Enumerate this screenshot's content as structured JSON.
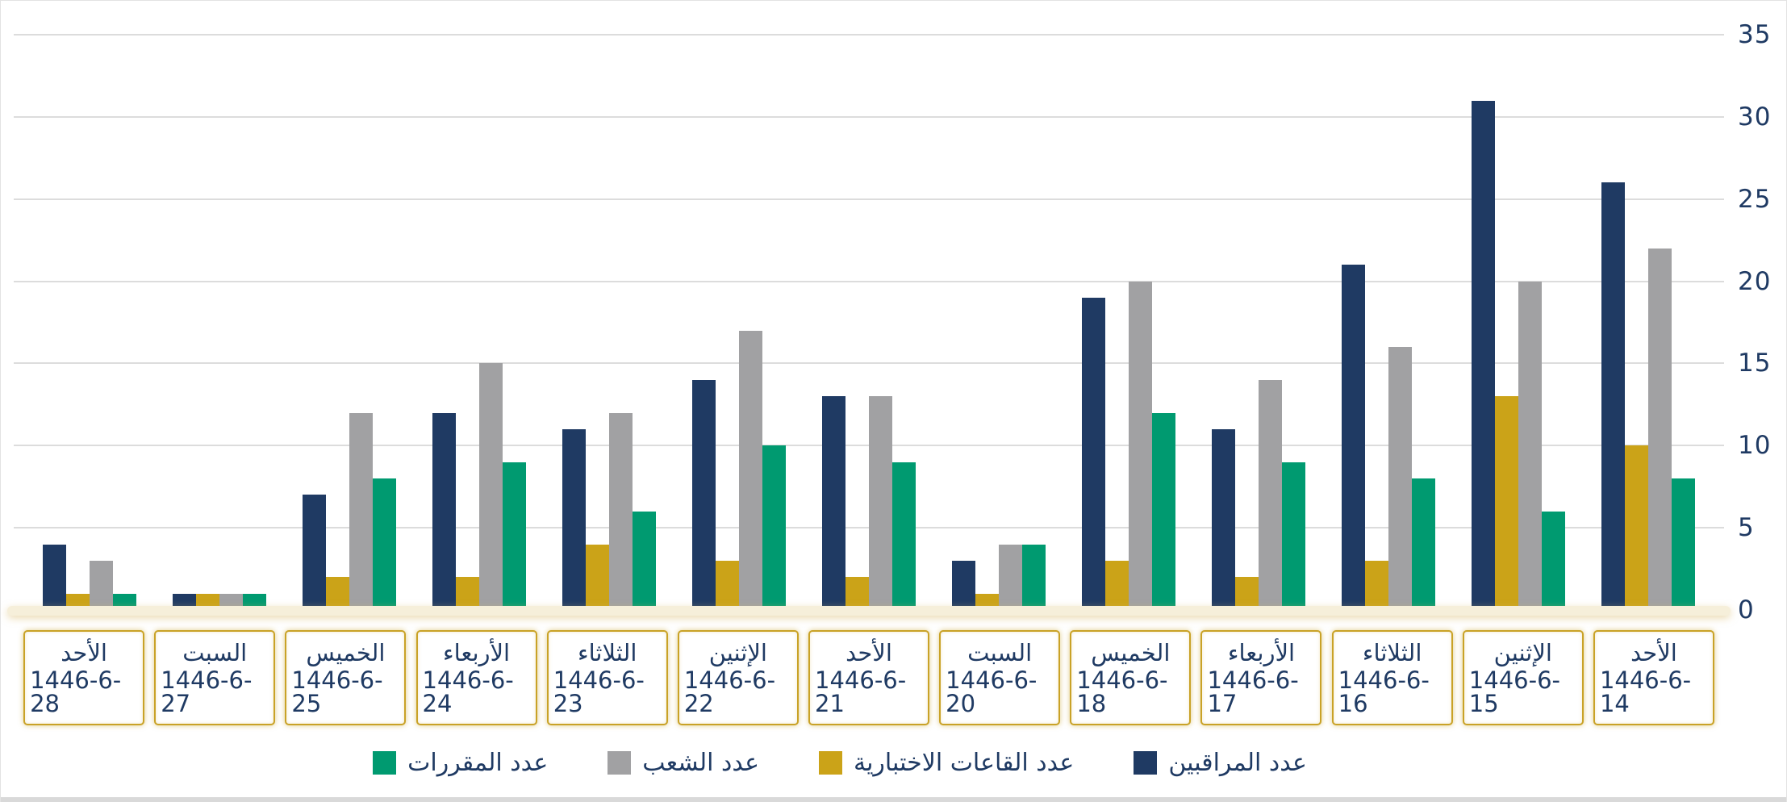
{
  "chart_data": {
    "type": "bar",
    "title": "",
    "xlabel": "",
    "ylabel": "",
    "ylim": [
      0,
      35
    ],
    "yticks": [
      0,
      5,
      10,
      15,
      20,
      25,
      30,
      35
    ],
    "grid": "horizontal",
    "legend_position": "bottom",
    "axis_side": "right",
    "categories": [
      {
        "day": "الأحد",
        "date": "1446-6-28"
      },
      {
        "day": "السبت",
        "date": "1446-6-27"
      },
      {
        "day": "الخميس",
        "date": "1446-6-25"
      },
      {
        "day": "الأربعاء",
        "date": "1446-6-24"
      },
      {
        "day": "الثلاثاء",
        "date": "1446-6-23"
      },
      {
        "day": "الإثنين",
        "date": "1446-6-22"
      },
      {
        "day": "الأحد",
        "date": "1446-6-21"
      },
      {
        "day": "السبت",
        "date": "1446-6-20"
      },
      {
        "day": "الخميس",
        "date": "1446-6-18"
      },
      {
        "day": "الأربعاء",
        "date": "1446-6-17"
      },
      {
        "day": "الثلاثاء",
        "date": "1446-6-16"
      },
      {
        "day": "الإثنين",
        "date": "1446-6-15"
      },
      {
        "day": "الأحد",
        "date": "1446-6-14"
      }
    ],
    "series": [
      {
        "id": "proctors",
        "name": "عدد المراقبين",
        "color": "#1f3a63",
        "values": [
          4,
          1,
          7,
          12,
          11,
          14,
          13,
          3,
          19,
          11,
          21,
          31,
          26
        ]
      },
      {
        "id": "exam-halls",
        "name": "عدد القاعات الاختبارية",
        "color": "#cba318",
        "values": [
          1,
          1,
          2,
          2,
          4,
          3,
          2,
          1,
          3,
          2,
          3,
          13,
          10
        ]
      },
      {
        "id": "sections",
        "name": "عدد الشعب",
        "color": "#a1a1a3",
        "values": [
          3,
          1,
          12,
          15,
          12,
          17,
          13,
          4,
          20,
          14,
          16,
          20,
          22
        ]
      },
      {
        "id": "courses",
        "name": "عدد المقررات",
        "color": "#009a70",
        "values": [
          1,
          1,
          8,
          9,
          6,
          10,
          9,
          4,
          12,
          9,
          8,
          6,
          8
        ]
      }
    ],
    "legend_order_left_to_right": [
      "courses",
      "sections",
      "exam-halls",
      "proctors"
    ],
    "colors": {
      "axis_text": "#1f3a63",
      "gridline": "#dcdcdc",
      "label_box_border": "#c9a227",
      "baseline_band": "#f6efda",
      "bottom_band": "#d9d9d9"
    }
  }
}
